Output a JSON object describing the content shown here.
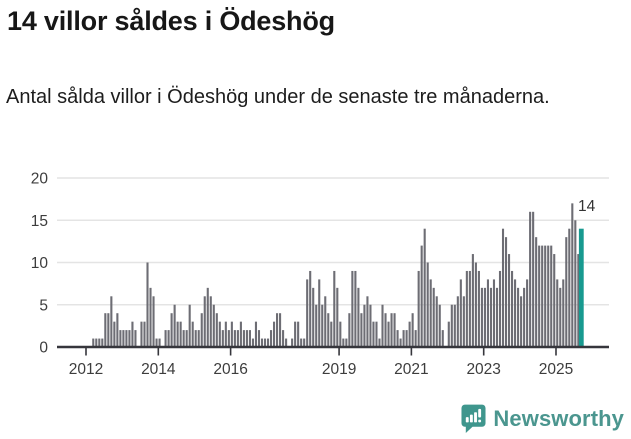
{
  "header": {
    "title": "14 villor såldes i Ödeshög",
    "subtitle": "Antal sålda villor i Ödeshög under de senaste tre månaderna."
  },
  "annotation": {
    "last_value_label": "14"
  },
  "branding": {
    "name": "Newsworthy",
    "icon": "newsworthy-speech-bubble-chart-icon"
  },
  "colors": {
    "bar": "#6d6d74",
    "highlight": "#189a90",
    "axis_text": "#3d3d3d",
    "axis_line": "#36363c",
    "grid": "#e4e4e4",
    "title_text": "#171717",
    "brand": "#4b968f",
    "brand_icon": "#3f968d",
    "background": "#ffffff"
  },
  "chart_data": {
    "type": "bar",
    "title": "14 villor såldes i Ödeshög",
    "subtitle": "Antal sålda villor i Ödeshög under de senaste tre månaderna.",
    "xlabel": "",
    "ylabel": "",
    "unit": "sålda villor (rullande 3 månader)",
    "start_month": "2011-04",
    "frequency": "monthly",
    "x_tick_years": [
      2012,
      2014,
      2016,
      2019,
      2021,
      2023,
      2025
    ],
    "y_ticks": [
      0,
      5,
      10,
      15,
      20
    ],
    "ylim": [
      0,
      20
    ],
    "grid": true,
    "highlight_last": true,
    "last_value": 14,
    "values": [
      0,
      0,
      0,
      0,
      0,
      0,
      0,
      0,
      0,
      0,
      0,
      1,
      1,
      1,
      1,
      4,
      4,
      6,
      3,
      4,
      2,
      2,
      2,
      2,
      3,
      2,
      0,
      3,
      3,
      10,
      7,
      6,
      1,
      1,
      0,
      2,
      2,
      4,
      5,
      3,
      3,
      2,
      2,
      5,
      3,
      2,
      2,
      4,
      6,
      7,
      6,
      5,
      4,
      3,
      2,
      3,
      2,
      3,
      2,
      2,
      3,
      2,
      2,
      2,
      1,
      3,
      2,
      1,
      1,
      1,
      2,
      3,
      4,
      4,
      2,
      1,
      0,
      1,
      3,
      3,
      1,
      1,
      8,
      9,
      7,
      5,
      8,
      5,
      6,
      4,
      3,
      9,
      7,
      3,
      1,
      1,
      4,
      9,
      9,
      7,
      4,
      5,
      6,
      5,
      3,
      3,
      1,
      5,
      4,
      3,
      4,
      4,
      2,
      1,
      2,
      2,
      3,
      4,
      2,
      9,
      12,
      14,
      10,
      8,
      7,
      6,
      5,
      2,
      0,
      3,
      5,
      5,
      6,
      8,
      6,
      9,
      9,
      11,
      10,
      9,
      7,
      7,
      8,
      7,
      8,
      7,
      9,
      14,
      13,
      11,
      9,
      8,
      7,
      6,
      7,
      8,
      16,
      16,
      13,
      12,
      12,
      12,
      12,
      12,
      11,
      8,
      7,
      8,
      13,
      14,
      17,
      15,
      11,
      14
    ]
  }
}
